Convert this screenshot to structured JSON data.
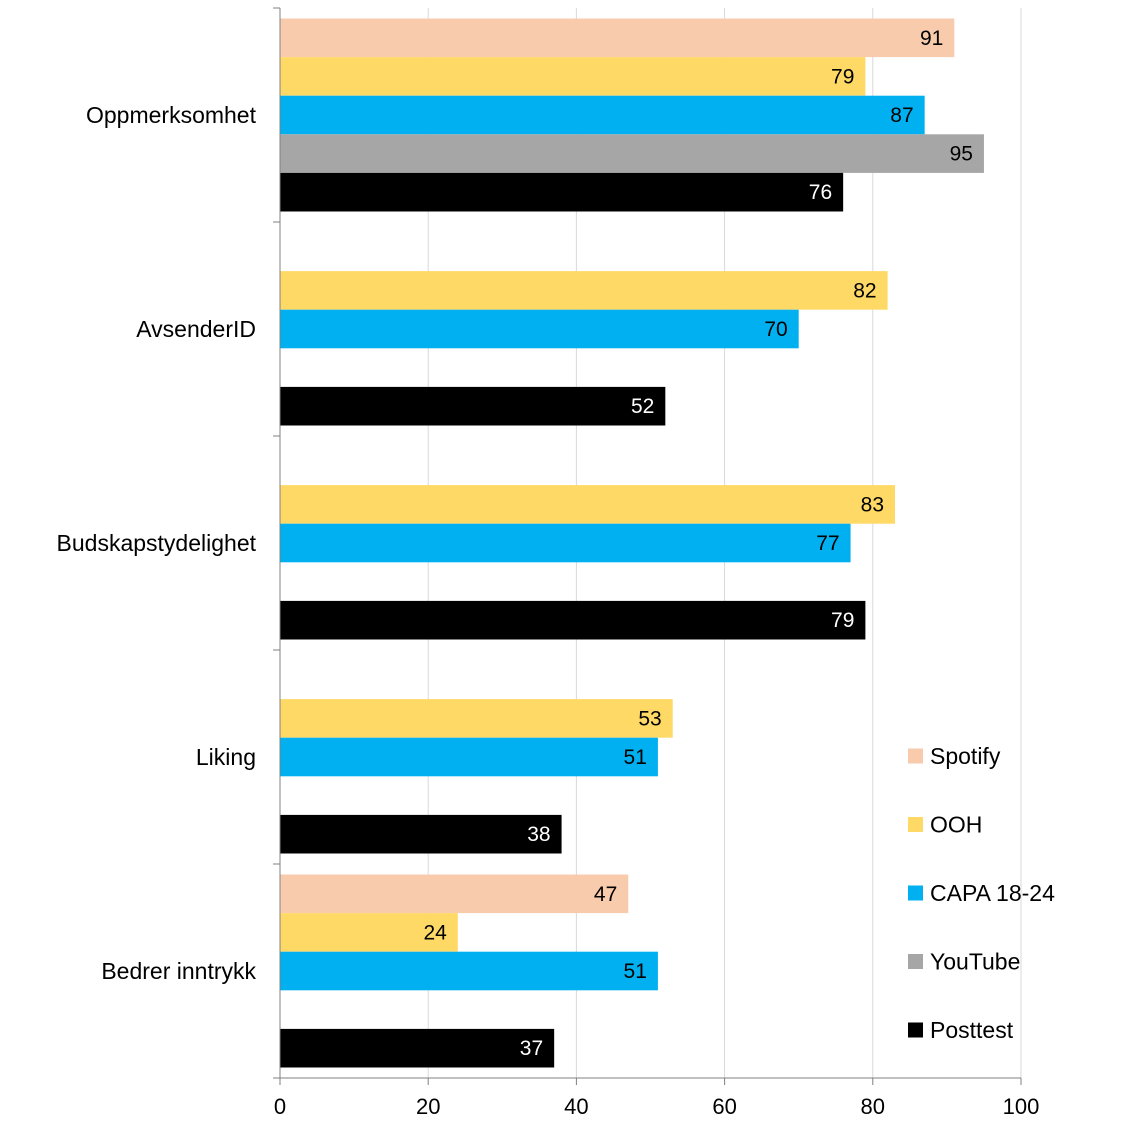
{
  "chart_data": {
    "type": "bar",
    "orientation": "horizontal",
    "categories": [
      "Oppmerksomhet",
      "AvsenderID",
      "Budskapstydelighet",
      "Liking",
      "Bedrer inntrykk"
    ],
    "series": [
      {
        "name": "Spotify",
        "color": "#F8CBAD",
        "label_color": "#000000",
        "values": [
          91,
          null,
          null,
          null,
          47
        ]
      },
      {
        "name": "OOH",
        "color": "#FFD966",
        "label_color": "#000000",
        "values": [
          79,
          82,
          83,
          53,
          24
        ]
      },
      {
        "name": "CAPA 18-24",
        "color": "#00B0F0",
        "label_color": "#000000",
        "values": [
          87,
          70,
          77,
          51,
          51
        ]
      },
      {
        "name": "YouTube",
        "color": "#A6A6A6",
        "label_color": "#000000",
        "values": [
          95,
          null,
          null,
          null,
          null
        ]
      },
      {
        "name": "Posttest",
        "color": "#000000",
        "label_color": "#FFFFFF",
        "values": [
          76,
          52,
          79,
          38,
          37
        ]
      }
    ],
    "xlim": [
      0,
      100
    ],
    "xticks": [
      0,
      20,
      40,
      60,
      80,
      100
    ],
    "grid": true,
    "legend_position": "bottom-right",
    "title": "",
    "xlabel": "",
    "ylabel": ""
  }
}
